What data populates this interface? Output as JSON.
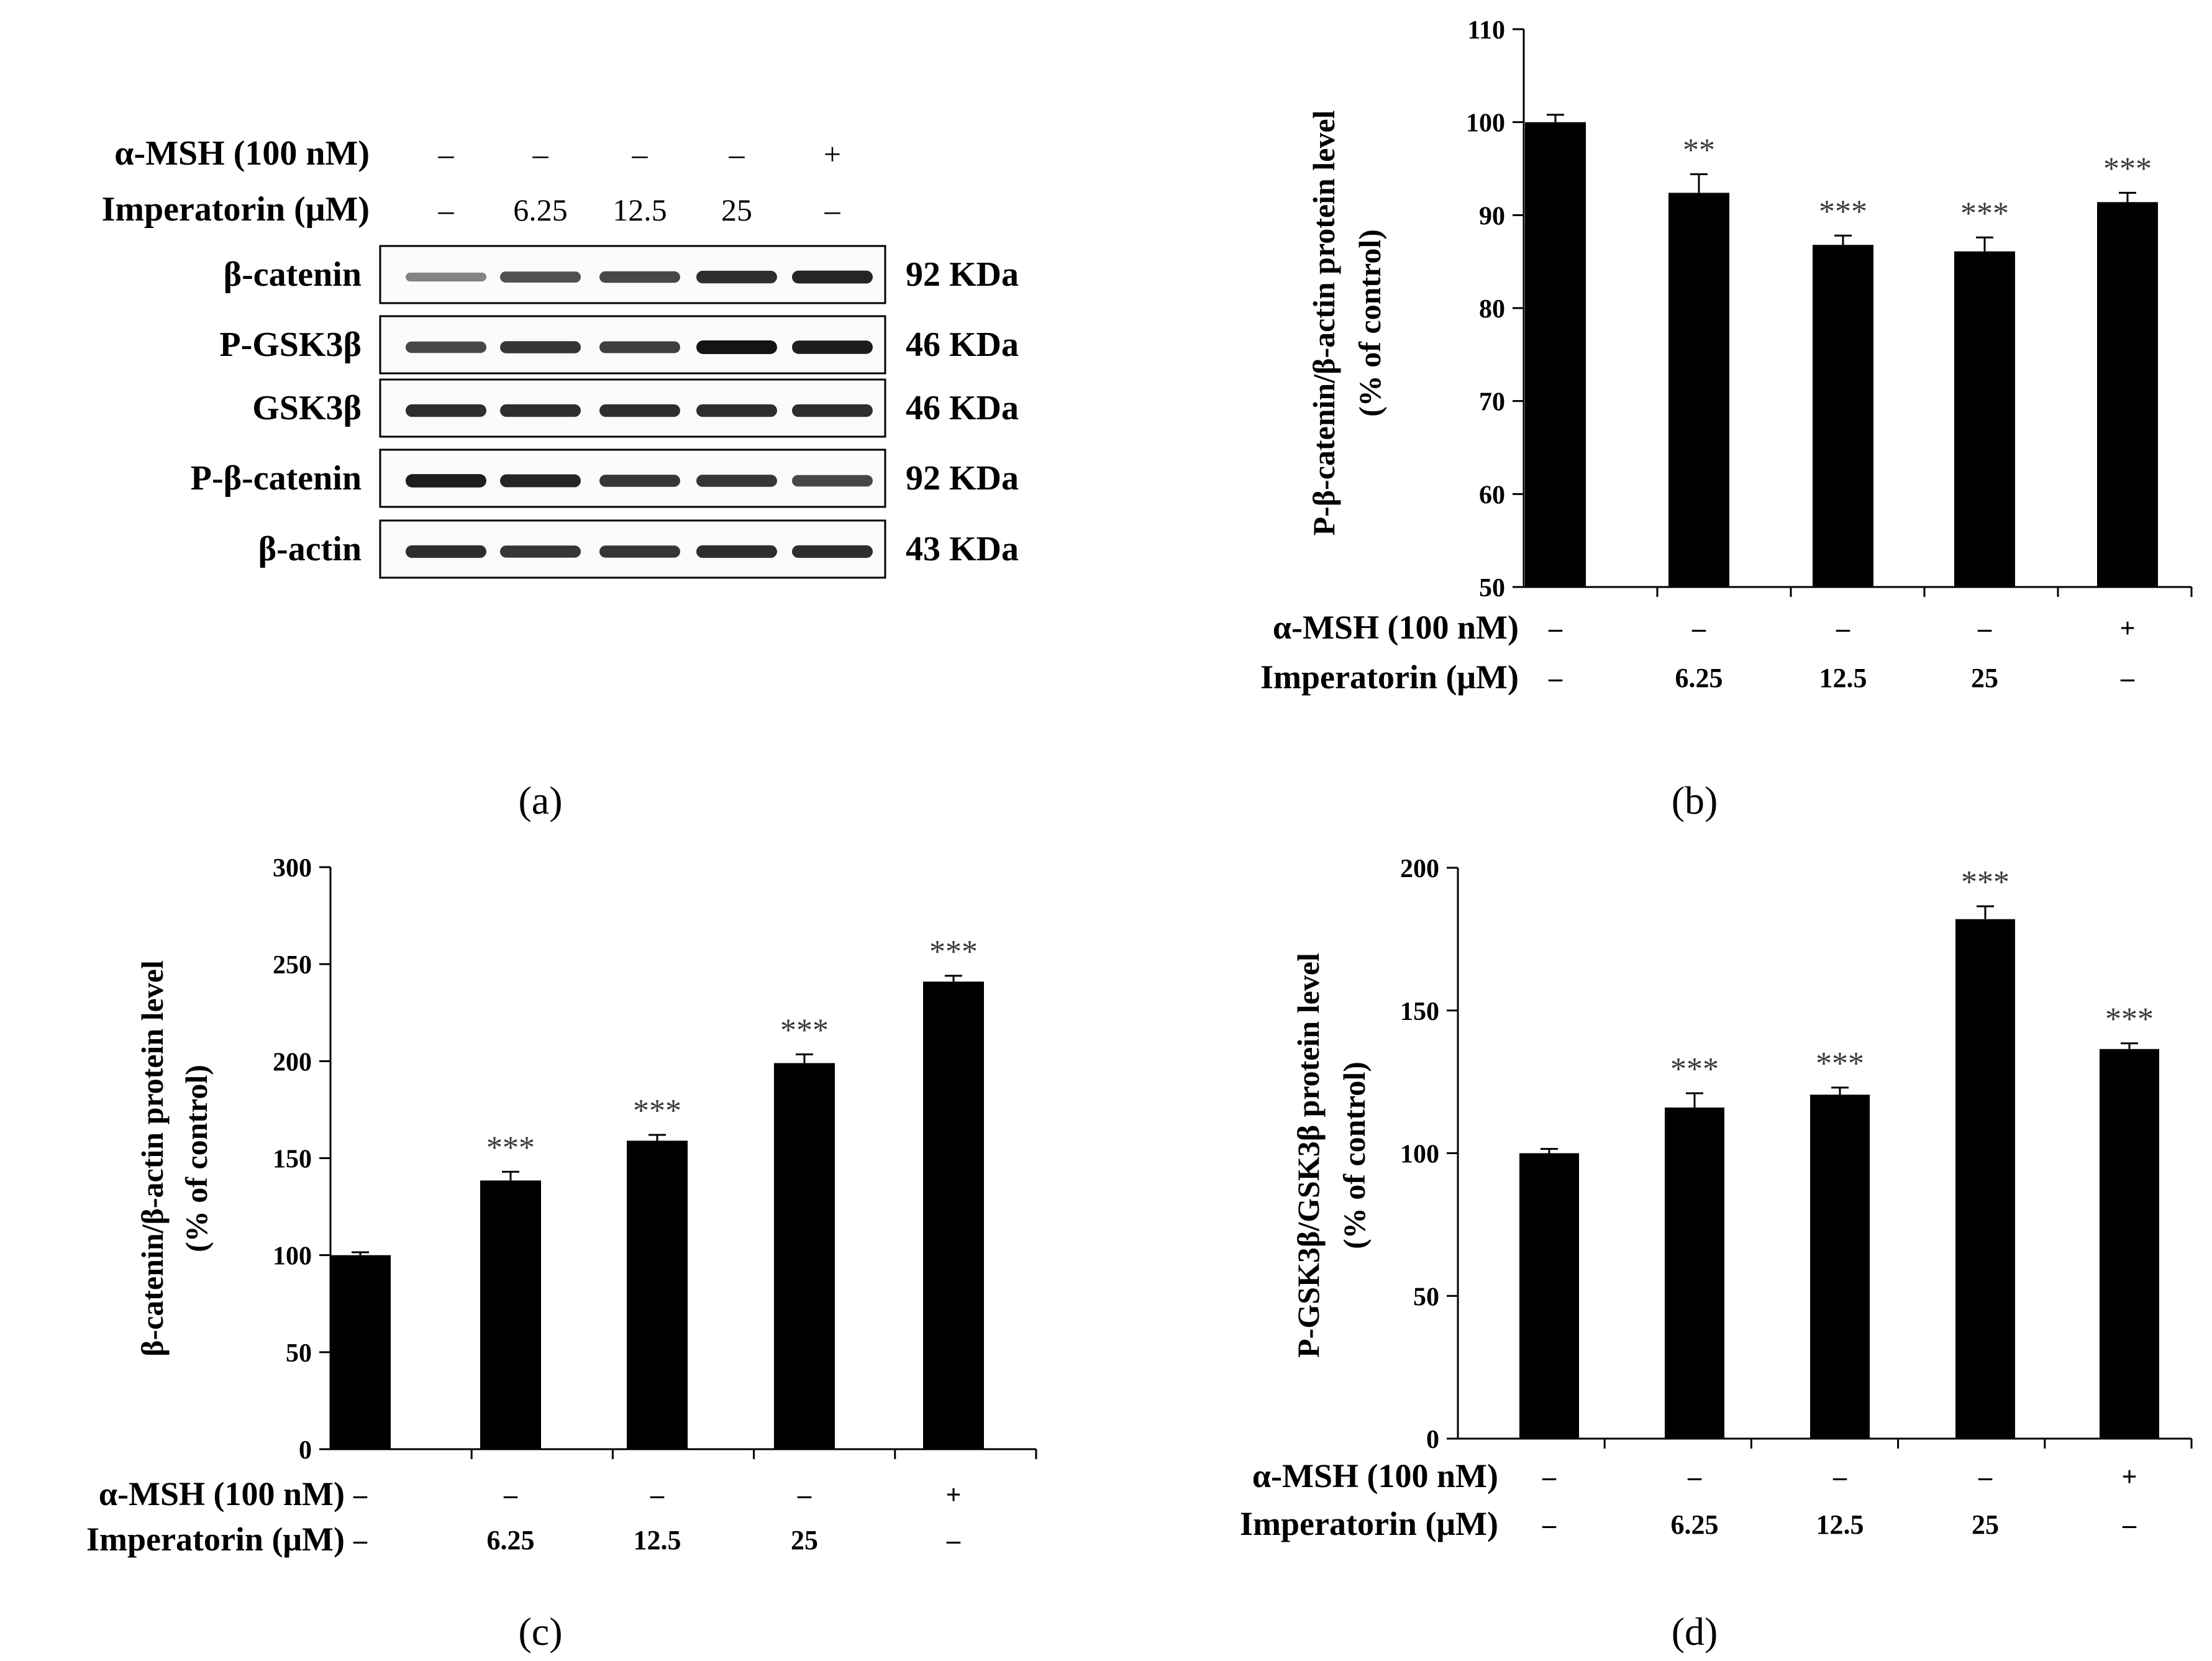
{
  "panel_labels": {
    "a": "(a)",
    "b": "(b)",
    "c": "(c)",
    "d": "(d)"
  },
  "western_blot": {
    "treatments": [
      {
        "label": "α-MSH (100 nM)",
        "values": [
          "–",
          "–",
          "–",
          "–",
          "+"
        ]
      },
      {
        "label": "Imperatorin (μM)",
        "values": [
          "–",
          "6.25",
          "12.5",
          "25",
          "–"
        ]
      }
    ],
    "bands": [
      {
        "name": "β-catenin",
        "size": "92 KDa",
        "intensity": [
          0.35,
          0.65,
          0.7,
          0.85,
          0.9
        ]
      },
      {
        "name": "P-GSK3β",
        "size": "46 KDa",
        "intensity": [
          0.7,
          0.8,
          0.75,
          1.0,
          0.95
        ]
      },
      {
        "name": "GSK3β",
        "size": "46 KDa",
        "intensity": [
          0.85,
          0.85,
          0.85,
          0.85,
          0.85
        ]
      },
      {
        "name": "P-β-catenin",
        "size": "92 KDa",
        "intensity": [
          0.95,
          0.9,
          0.8,
          0.8,
          0.7
        ]
      },
      {
        "name": "β-actin",
        "size": "43 KDa",
        "intensity": [
          0.85,
          0.8,
          0.8,
          0.85,
          0.85
        ]
      }
    ]
  },
  "chart_data": [
    {
      "panel": "b",
      "type": "bar",
      "ylabel_line1": "P-β-catenin/β-actin protein level",
      "ylabel_line2": "(% of control)",
      "ylim": [
        50,
        110
      ],
      "yticks": [
        50,
        60,
        70,
        80,
        90,
        100,
        110
      ],
      "values": [
        100,
        92.4,
        86.8,
        86.1,
        91.4
      ],
      "errors": [
        0.8,
        2.0,
        1.0,
        1.5,
        1.0
      ],
      "significance": [
        "",
        "**",
        "***",
        "***",
        "***"
      ],
      "treatments": [
        {
          "label": "α-MSH (100 nM)",
          "values": [
            "–",
            "–",
            "–",
            "–",
            "+"
          ]
        },
        {
          "label": "Imperatorin (μM)",
          "values": [
            "–",
            "6.25",
            "12.5",
            "25",
            "–"
          ]
        }
      ]
    },
    {
      "panel": "c",
      "type": "bar",
      "ylabel_line1": "β-catenin/β-actin protein level",
      "ylabel_line2": "(% of control)",
      "ylim": [
        0,
        300
      ],
      "yticks": [
        0,
        50,
        100,
        150,
        200,
        250,
        300
      ],
      "values": [
        100,
        138.5,
        159,
        199,
        241
      ],
      "errors": [
        1.5,
        4.5,
        3.0,
        4.5,
        3.0
      ],
      "significance": [
        "",
        "***",
        "***",
        "***",
        "***"
      ],
      "treatments": [
        {
          "label": "α-MSH (100 nM)",
          "values": [
            "–",
            "–",
            "–",
            "–",
            "+"
          ]
        },
        {
          "label": "Imperatorin (μM)",
          "values": [
            "–",
            "6.25",
            "12.5",
            "25",
            "–"
          ]
        }
      ]
    },
    {
      "panel": "d",
      "type": "bar",
      "ylabel_line1": "P-GSK3β/GSK3β protein level",
      "ylabel_line2": "(% of control)",
      "ylim": [
        0,
        200
      ],
      "yticks": [
        0,
        50,
        100,
        150,
        200
      ],
      "values": [
        100,
        116,
        120.5,
        182,
        136.5
      ],
      "errors": [
        1.5,
        5.0,
        2.5,
        4.5,
        2.0
      ],
      "significance": [
        "",
        "***",
        "***",
        "***",
        "***"
      ],
      "treatments": [
        {
          "label": "α-MSH (100 nM)",
          "values": [
            "–",
            "–",
            "–",
            "–",
            "+"
          ]
        },
        {
          "label": "Imperatorin (μM)",
          "values": [
            "–",
            "6.25",
            "12.5",
            "25",
            "–"
          ]
        }
      ]
    }
  ]
}
